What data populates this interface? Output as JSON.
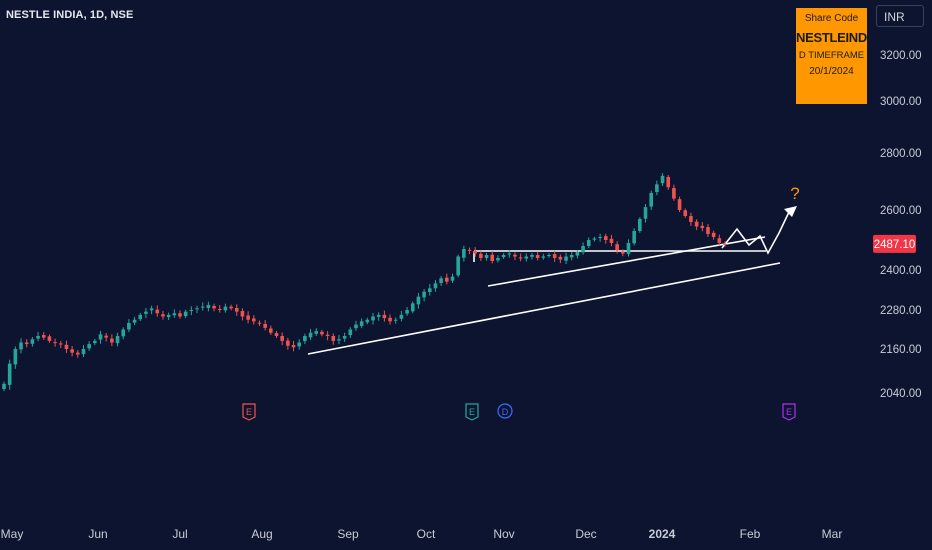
{
  "header": {
    "title": "NESTLE INDIA, 1D, NSE",
    "currency": "INR"
  },
  "info_box": {
    "line1": "Share Code",
    "line2": "NESTLEIND",
    "line3": "D TIMEFRAME",
    "line4": "20/1/2024"
  },
  "colors": {
    "background": "#0d1430",
    "up": "#26a69a",
    "down": "#ef5350",
    "info_box": "#ff9800",
    "price_tag": "#f23645",
    "drawing": "#ffffff"
  },
  "chart_data": {
    "type": "candlestick",
    "y_tick_labels": [
      "3200.00",
      "3000.00",
      "2800.00",
      "2600.00",
      "2400.00",
      "2280.00",
      "2160.00",
      "2040.00"
    ],
    "y_ticks": [
      3200,
      3000,
      2800,
      2600,
      2400,
      2280,
      2160,
      2040
    ],
    "x_tick_labels": [
      "May",
      "Jun",
      "Jul",
      "Aug",
      "Sep",
      "Oct",
      "Nov",
      "Dec",
      "2024",
      "Feb",
      "Mar"
    ],
    "current_price": "2487.10",
    "ohlc_close": [
      2065,
      2120,
      2160,
      2180,
      2175,
      2190,
      2200,
      2195,
      2185,
      2180,
      2175,
      2160,
      2150,
      2145,
      2160,
      2175,
      2185,
      2205,
      2195,
      2180,
      2200,
      2220,
      2240,
      2250,
      2265,
      2275,
      2285,
      2270,
      2260,
      2265,
      2270,
      2260,
      2275,
      2280,
      2285,
      2290,
      2295,
      2285,
      2280,
      2290,
      2285,
      2275,
      2260,
      2250,
      2245,
      2240,
      2225,
      2210,
      2200,
      2185,
      2170,
      2165,
      2180,
      2200,
      2210,
      2215,
      2205,
      2200,
      2185,
      2190,
      2200,
      2220,
      2235,
      2245,
      2250,
      2260,
      2265,
      2255,
      2245,
      2250,
      2265,
      2280,
      2300,
      2320,
      2335,
      2345,
      2360,
      2375,
      2365,
      2380,
      2445,
      2470,
      2465,
      2455,
      2440,
      2450,
      2430,
      2440,
      2450,
      2455,
      2445,
      2440,
      2445,
      2450,
      2440,
      2445,
      2450,
      2440,
      2435,
      2445,
      2450,
      2460,
      2480,
      2500,
      2505,
      2510,
      2500,
      2490,
      2465,
      2455,
      2490,
      2530,
      2570,
      2610,
      2660,
      2690,
      2720,
      2680,
      2640,
      2600,
      2580,
      2560,
      2545,
      2540,
      2520,
      2510,
      2490,
      2485
    ],
    "events": [
      "E",
      "E",
      "D",
      "E"
    ]
  }
}
